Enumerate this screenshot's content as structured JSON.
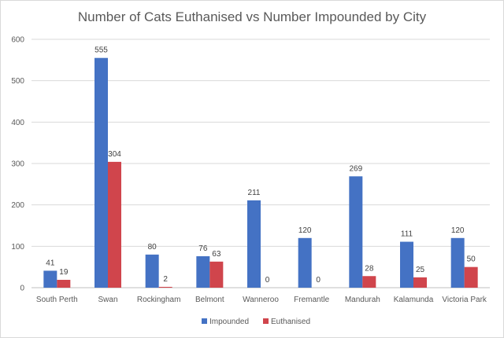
{
  "chart_data": {
    "type": "bar",
    "title": "Number of Cats Euthanised vs Number Impounded by City",
    "xlabel": "",
    "ylabel": "",
    "ylim": [
      0,
      600
    ],
    "yticks": [
      0,
      100,
      200,
      300,
      400,
      500,
      600
    ],
    "grid": true,
    "legend_position": "bottom",
    "categories": [
      "South Perth",
      "Swan",
      "Rockingham",
      "Belmont",
      "Wanneroo",
      "Fremantle",
      "Mandurah",
      "Kalamunda",
      "Victoria Park"
    ],
    "series": [
      {
        "name": "Impounded",
        "color": "#4472c4",
        "values": [
          41,
          555,
          80,
          76,
          211,
          120,
          269,
          111,
          120
        ]
      },
      {
        "name": "Euthanised",
        "color": "#d0454c",
        "values": [
          19,
          304,
          2,
          63,
          0,
          0,
          28,
          25,
          50
        ]
      }
    ]
  }
}
